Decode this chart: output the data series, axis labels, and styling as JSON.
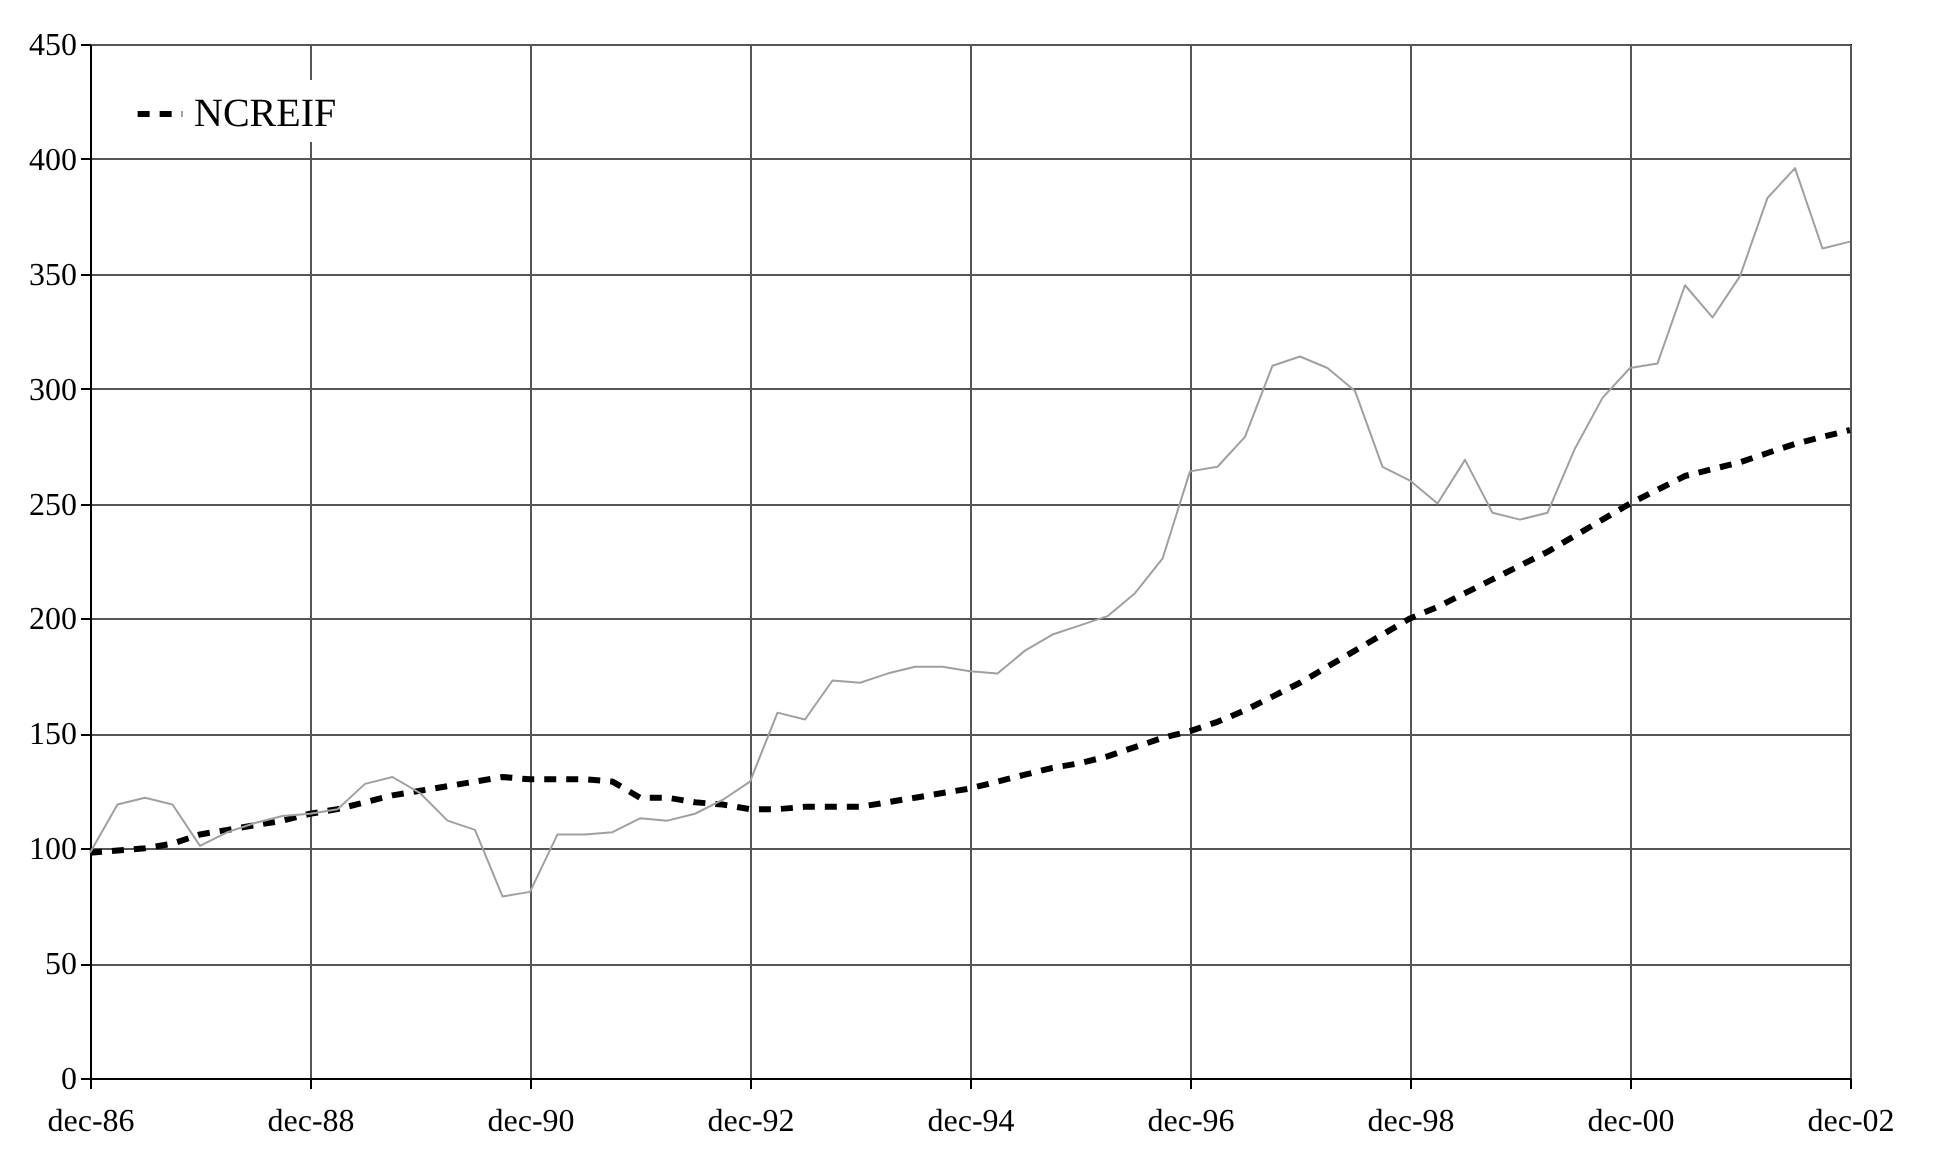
{
  "chart_data": {
    "type": "line",
    "categories": [
      "dec-86",
      null,
      null,
      null,
      null,
      null,
      null,
      null,
      "dec-88",
      null,
      null,
      null,
      null,
      null,
      null,
      null,
      "dec-90",
      null,
      null,
      null,
      null,
      null,
      null,
      null,
      "dec-92",
      null,
      null,
      null,
      null,
      null,
      null,
      null,
      "dec-94",
      null,
      null,
      null,
      null,
      null,
      null,
      null,
      "dec-96",
      null,
      null,
      null,
      null,
      null,
      null,
      null,
      "dec-98",
      null,
      null,
      null,
      null,
      null,
      null,
      null,
      "dec-00",
      null,
      null,
      null,
      null,
      null,
      null,
      null,
      "dec-02"
    ],
    "series": [
      {
        "name": "NCREIF",
        "color": "#000000",
        "line_style": "dashed",
        "values": [
          98,
          99,
          100,
          102,
          106,
          108,
          110,
          112,
          115,
          117,
          120,
          123,
          125,
          127,
          129,
          131,
          130,
          130,
          130,
          129,
          122,
          122,
          120,
          119,
          117,
          117,
          118,
          118,
          118,
          120,
          122,
          124,
          126,
          129,
          132,
          135,
          137,
          140,
          144,
          148,
          151,
          155,
          160,
          166,
          172,
          179,
          186,
          193,
          200,
          205,
          211,
          217,
          223,
          229,
          236,
          243,
          250,
          256,
          262,
          265,
          268,
          272,
          276,
          279,
          282
        ]
      },
      {
        "color": "#a0a0a0",
        "line_style": "solid",
        "values": [
          98,
          119,
          122,
          119,
          101,
          107,
          111,
          114,
          115,
          117,
          128,
          131,
          124,
          112,
          108,
          79,
          81,
          106,
          106,
          107,
          113,
          112,
          115,
          121,
          129,
          159,
          156,
          173,
          172,
          176,
          179,
          179,
          177,
          176,
          186,
          193,
          197,
          201,
          211,
          226,
          264,
          266,
          279,
          310,
          314,
          309,
          299,
          266,
          260,
          250,
          269,
          246,
          243,
          246,
          274,
          296,
          309,
          311,
          345,
          331,
          349,
          383,
          396,
          361,
          364
        ]
      }
    ],
    "ylim": [
      0,
      450
    ],
    "yticks": [
      0,
      50,
      100,
      150,
      200,
      250,
      300,
      350,
      400,
      450
    ],
    "grid": true,
    "legend": "top left"
  }
}
